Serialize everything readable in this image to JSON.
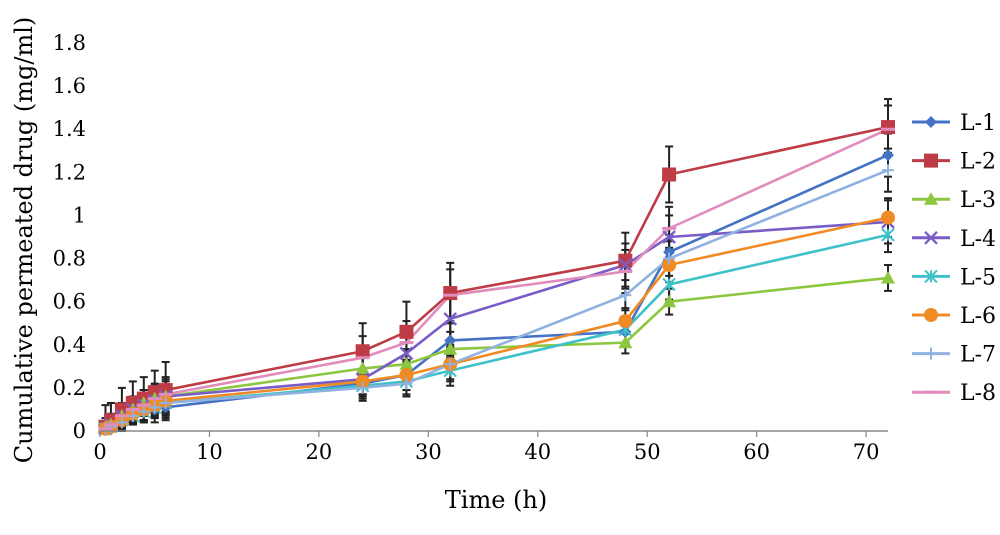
{
  "chart_data": {
    "type": "line",
    "title": "",
    "xlabel": "Time (h)",
    "ylabel": "Cumulative permeated drug (mg/ml)",
    "xlim": [
      0,
      72
    ],
    "ylim": [
      0,
      1.8
    ],
    "xticks": [
      "0",
      "10",
      "20",
      "30",
      "40",
      "50",
      "60",
      "70"
    ],
    "yticks": [
      "0",
      "0.2",
      "0.4",
      "0.6",
      "0.8",
      "1",
      "1.2",
      "1.4",
      "1.6",
      "1.8"
    ],
    "grid": false,
    "legend_position": "right",
    "x": [
      0.5,
      1,
      2,
      3,
      4,
      5,
      6,
      24,
      28,
      32,
      48,
      52,
      72
    ],
    "series": [
      {
        "name": "L-1",
        "color": "#4472c4",
        "marker": "diamond",
        "values": [
          0.01,
          0.02,
          0.05,
          0.07,
          0.09,
          0.1,
          0.11,
          0.22,
          0.26,
          0.42,
          0.46,
          0.83,
          1.28
        ],
        "errors": [
          0.02,
          0.02,
          0.03,
          0.04,
          0.05,
          0.06,
          0.06,
          0.05,
          0.07,
          0.08,
          0.05,
          0.08,
          0.1
        ]
      },
      {
        "name": "L-2",
        "color": "#be3c46",
        "marker": "square",
        "values": [
          0.02,
          0.05,
          0.1,
          0.13,
          0.15,
          0.18,
          0.19,
          0.37,
          0.46,
          0.64,
          0.79,
          1.19,
          1.41
        ],
        "errors": [
          0.1,
          0.08,
          0.1,
          0.1,
          0.1,
          0.1,
          0.13,
          0.13,
          0.14,
          0.14,
          0.13,
          0.13,
          0.13
        ]
      },
      {
        "name": "L-3",
        "color": "#8dc63f",
        "marker": "triangle",
        "values": [
          0.01,
          0.03,
          0.07,
          0.1,
          0.13,
          0.15,
          0.16,
          0.29,
          0.31,
          0.38,
          0.41,
          0.6,
          0.71
        ],
        "errors": [
          0.03,
          0.03,
          0.04,
          0.05,
          0.06,
          0.06,
          0.07,
          0.06,
          0.07,
          0.08,
          0.05,
          0.06,
          0.06
        ]
      },
      {
        "name": "L-4",
        "color": "#7a5cc7",
        "marker": "x",
        "values": [
          0.01,
          0.03,
          0.07,
          0.1,
          0.12,
          0.14,
          0.16,
          0.24,
          0.36,
          0.52,
          0.77,
          0.9,
          0.97
        ],
        "errors": [
          0.05,
          0.05,
          0.06,
          0.06,
          0.07,
          0.07,
          0.08,
          0.1,
          0.1,
          0.12,
          0.1,
          0.1,
          0.1
        ]
      },
      {
        "name": "L-5",
        "color": "#3fc1c9",
        "marker": "star",
        "values": [
          0.01,
          0.02,
          0.05,
          0.07,
          0.09,
          0.11,
          0.13,
          0.21,
          0.23,
          0.28,
          0.47,
          0.68,
          0.91
        ],
        "errors": [
          0.02,
          0.02,
          0.03,
          0.04,
          0.05,
          0.05,
          0.06,
          0.05,
          0.06,
          0.07,
          0.06,
          0.07,
          0.08
        ]
      },
      {
        "name": "L-6",
        "color": "#f08a24",
        "marker": "circle",
        "values": [
          0.01,
          0.02,
          0.05,
          0.08,
          0.1,
          0.12,
          0.14,
          0.23,
          0.26,
          0.31,
          0.51,
          0.77,
          0.99
        ],
        "errors": [
          0.02,
          0.02,
          0.03,
          0.04,
          0.05,
          0.05,
          0.06,
          0.06,
          0.07,
          0.08,
          0.06,
          0.08,
          0.09
        ]
      },
      {
        "name": "L-7",
        "color": "#8fb2e0",
        "marker": "plus",
        "values": [
          0.01,
          0.02,
          0.04,
          0.07,
          0.09,
          0.11,
          0.13,
          0.2,
          0.22,
          0.31,
          0.63,
          0.8,
          1.21
        ],
        "errors": [
          0.02,
          0.02,
          0.03,
          0.03,
          0.04,
          0.05,
          0.05,
          0.05,
          0.06,
          0.07,
          0.07,
          0.08,
          0.1
        ]
      },
      {
        "name": "L-8",
        "color": "#e08cbc",
        "marker": "line",
        "values": [
          0.01,
          0.03,
          0.07,
          0.1,
          0.12,
          0.15,
          0.17,
          0.34,
          0.41,
          0.63,
          0.74,
          0.94,
          1.4
        ],
        "errors": [
          0.03,
          0.03,
          0.05,
          0.06,
          0.07,
          0.07,
          0.08,
          0.1,
          0.1,
          0.12,
          0.1,
          0.1,
          0.11
        ]
      }
    ]
  }
}
